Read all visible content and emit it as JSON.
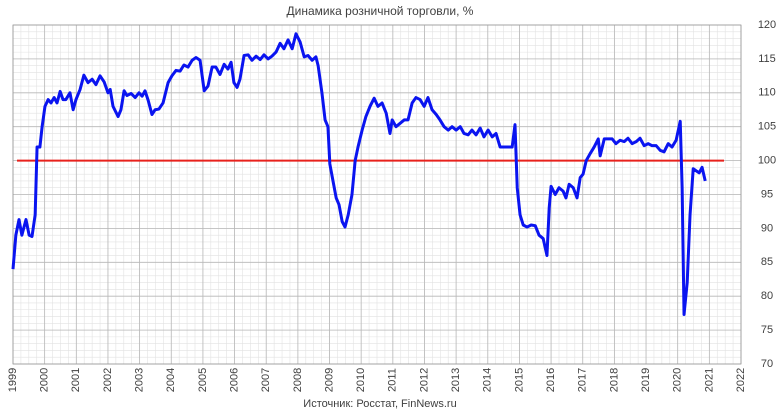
{
  "chart_data": {
    "type": "line",
    "title": "Динамика розничной торговли, %",
    "source": "Источник: Росстат, FinNews.ru",
    "xlim": [
      1999,
      2022
    ],
    "xticks": [
      1999,
      2000,
      2001,
      2002,
      2003,
      2004,
      2005,
      2006,
      2007,
      2008,
      2009,
      2010,
      2011,
      2012,
      2013,
      2014,
      2015,
      2016,
      2017,
      2018,
      2019,
      2020,
      2021,
      2022
    ],
    "ylim": [
      70,
      120
    ],
    "yticks": [
      70,
      75,
      80,
      85,
      90,
      95,
      100,
      105,
      110,
      115,
      120
    ],
    "grid": true,
    "reference_line": {
      "value": 100,
      "color": "#e8211c"
    },
    "series": [
      {
        "name": "Динамика розничной торговли",
        "color": "#0a14f0",
        "x": [
          1999.0,
          1999.09,
          1999.19,
          1999.28,
          1999.41,
          1999.51,
          1999.6,
          1999.7,
          1999.76,
          1999.85,
          1999.92,
          2000.01,
          2000.11,
          2000.2,
          2000.3,
          2000.39,
          2000.49,
          2000.58,
          2000.67,
          2000.8,
          2000.9,
          2000.99,
          2001.12,
          2001.24,
          2001.37,
          2001.5,
          2001.62,
          2001.75,
          2001.88,
          2002.0,
          2002.07,
          2002.16,
          2002.32,
          2002.41,
          2002.51,
          2002.6,
          2002.73,
          2002.86,
          2002.98,
          2003.08,
          2003.17,
          2003.27,
          2003.39,
          2003.49,
          2003.61,
          2003.74,
          2003.9,
          2004.02,
          2004.15,
          2004.28,
          2004.4,
          2004.53,
          2004.66,
          2004.78,
          2004.91,
          2005.04,
          2005.16,
          2005.29,
          2005.41,
          2005.54,
          2005.67,
          2005.79,
          2005.89,
          2005.98,
          2006.08,
          2006.17,
          2006.3,
          2006.43,
          2006.55,
          2006.68,
          2006.81,
          2006.93,
          2007.06,
          2007.18,
          2007.31,
          2007.44,
          2007.56,
          2007.69,
          2007.82,
          2007.94,
          2008.07,
          2008.2,
          2008.32,
          2008.45,
          2008.57,
          2008.64,
          2008.76,
          2008.86,
          2008.95,
          2009.01,
          2009.11,
          2009.21,
          2009.3,
          2009.4,
          2009.49,
          2009.59,
          2009.71,
          2009.81,
          2009.9,
          2010.03,
          2010.15,
          2010.28,
          2010.41,
          2010.53,
          2010.66,
          2010.79,
          2010.91,
          2010.98,
          2011.1,
          2011.23,
          2011.36,
          2011.48,
          2011.61,
          2011.73,
          2011.86,
          2011.99,
          2012.11,
          2012.24,
          2012.37,
          2012.49,
          2012.62,
          2012.75,
          2012.87,
          2013.0,
          2013.13,
          2013.25,
          2013.38,
          2013.5,
          2013.63,
          2013.76,
          2013.88,
          2014.01,
          2014.14,
          2014.26,
          2014.39,
          2014.52,
          2014.64,
          2014.77,
          2014.86,
          2014.93,
          2015.02,
          2015.12,
          2015.24,
          2015.37,
          2015.5,
          2015.62,
          2015.75,
          2015.87,
          2015.94,
          2016.0,
          2016.13,
          2016.25,
          2016.38,
          2016.47,
          2016.57,
          2016.7,
          2016.82,
          2016.92,
          2017.01,
          2017.11,
          2017.23,
          2017.36,
          2017.49,
          2017.55,
          2017.68,
          2017.8,
          2017.93,
          2018.05,
          2018.18,
          2018.31,
          2018.43,
          2018.56,
          2018.69,
          2018.81,
          2018.94,
          2019.07,
          2019.19,
          2019.32,
          2019.45,
          2019.57,
          2019.7,
          2019.82,
          2019.95,
          2020.08,
          2020.14,
          2020.2,
          2020.3,
          2020.39,
          2020.49,
          2020.58,
          2020.68,
          2020.77,
          2020.87
        ],
        "values": [
          84,
          89,
          91.3,
          89,
          91.3,
          89,
          88.8,
          92,
          102,
          102,
          105,
          108,
          109,
          108.5,
          109.3,
          108.5,
          110.2,
          109,
          109,
          110,
          107.5,
          109,
          110.5,
          112.6,
          111.5,
          112,
          111.2,
          112.5,
          111.6,
          110,
          110.5,
          108,
          106.5,
          107.5,
          110.3,
          109.6,
          109.9,
          109.3,
          110,
          109.5,
          110.3,
          108.9,
          106.8,
          107.5,
          107.6,
          108.5,
          111.5,
          112.5,
          113.3,
          113.2,
          114.1,
          113.8,
          114.8,
          115.2,
          114.8,
          110.3,
          111,
          113.8,
          113.8,
          112.7,
          114.2,
          113.5,
          114.5,
          111.5,
          110.8,
          112,
          115.5,
          115.6,
          114.8,
          115.4,
          114.9,
          115.6,
          115,
          115.4,
          116,
          117.3,
          116.5,
          117.8,
          116.5,
          118.7,
          117.5,
          115.3,
          115.5,
          114.8,
          115.3,
          114,
          110,
          106,
          105,
          99.5,
          97,
          94.5,
          93.5,
          91,
          90.2,
          92,
          95,
          100,
          102,
          104.5,
          106.5,
          108,
          109.2,
          108,
          108.5,
          107,
          104,
          106,
          105,
          105.5,
          106,
          106,
          108.5,
          109.3,
          109,
          108,
          109.3,
          107.5,
          106.8,
          106,
          105,
          104.5,
          105,
          104.5,
          105,
          104,
          103.8,
          104.5,
          103.8,
          104.8,
          103.5,
          104.5,
          103.5,
          104,
          102,
          102,
          102,
          102,
          105.3,
          96,
          92,
          90.5,
          90.2,
          90.5,
          90.4,
          89,
          88.5,
          86,
          93,
          96.2,
          95,
          96,
          95.5,
          94.5,
          96.5,
          96,
          94.5,
          97.5,
          98,
          100,
          101,
          102,
          103.2,
          100.7,
          103.2,
          103.2,
          103.2,
          102.5,
          103,
          102.8,
          103.3,
          102.5,
          102.8,
          103.3,
          102.2,
          102.5,
          102.2,
          102.2,
          101.5,
          101.3,
          102.5,
          102,
          103,
          105.8,
          96,
          77.3,
          82,
          92,
          98.8,
          98.5,
          98.2,
          99,
          97
        ]
      }
    ]
  }
}
